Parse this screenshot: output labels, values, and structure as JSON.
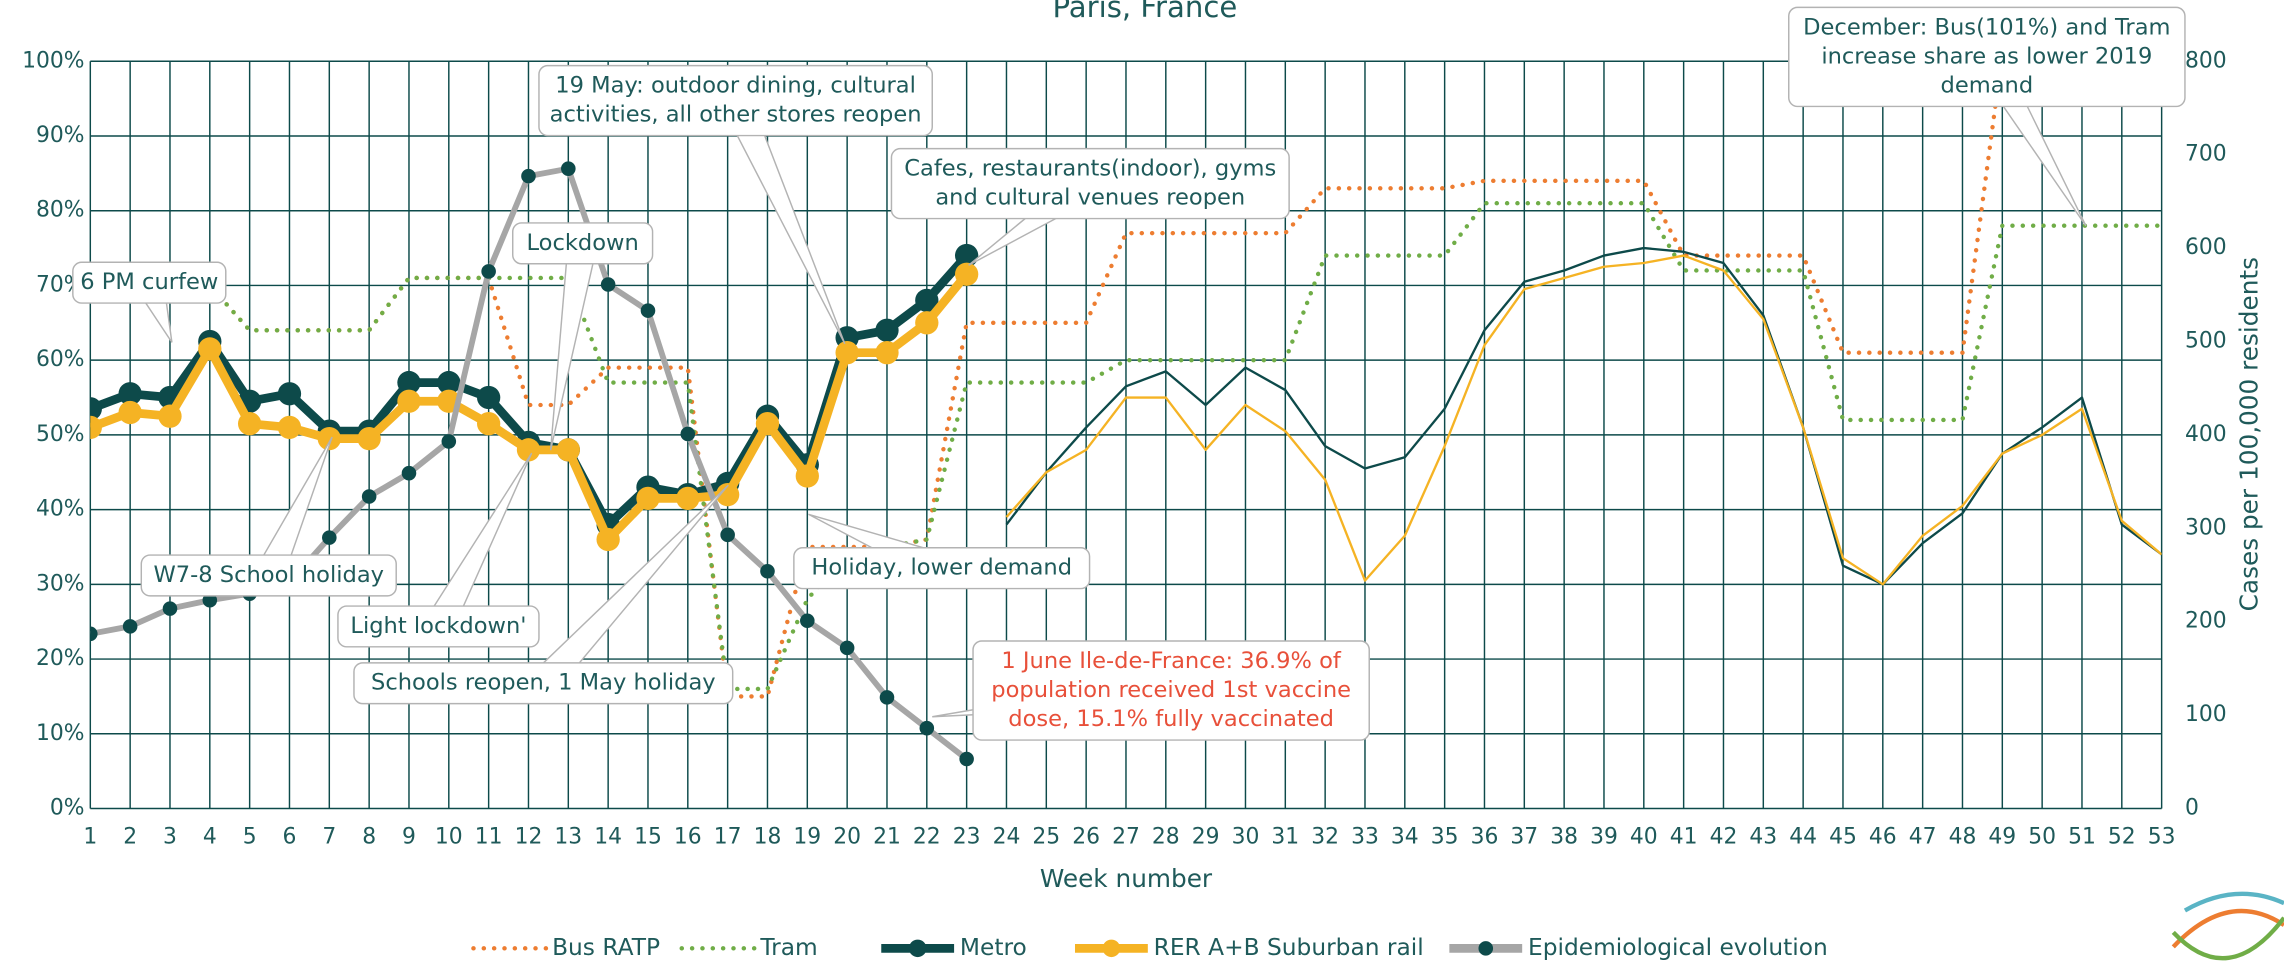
{
  "chart_data": {
    "type": "line",
    "title": "Paris, France",
    "xlabel": "Week number",
    "y2label": "Cases per 100,000 residents",
    "x": [
      1,
      2,
      3,
      4,
      5,
      6,
      7,
      8,
      9,
      10,
      11,
      12,
      13,
      14,
      15,
      16,
      17,
      18,
      19,
      20,
      21,
      22,
      23,
      24,
      25,
      26,
      27,
      28,
      29,
      30,
      31,
      32,
      33,
      34,
      35,
      36,
      37,
      38,
      39,
      40,
      41,
      42,
      43,
      44,
      45,
      46,
      47,
      48,
      49,
      50,
      51,
      52,
      53
    ],
    "xlim": [
      1,
      53
    ],
    "xticks": [
      1,
      2,
      3,
      4,
      5,
      6,
      7,
      8,
      9,
      10,
      11,
      12,
      13,
      14,
      15,
      16,
      17,
      18,
      19,
      20,
      21,
      22,
      23,
      24,
      25,
      26,
      27,
      28,
      29,
      30,
      31,
      32,
      33,
      34,
      35,
      36,
      37,
      38,
      39,
      40,
      41,
      42,
      43,
      44,
      45,
      46,
      47,
      48,
      49,
      50,
      51,
      52,
      53
    ],
    "ylim": [
      0,
      100
    ],
    "yticks": [
      {
        "value": 0,
        "label": "0%"
      },
      {
        "value": 10,
        "label": "10%"
      },
      {
        "value": 20,
        "label": "20%"
      },
      {
        "value": 30,
        "label": "30%"
      },
      {
        "value": 40,
        "label": "40%"
      },
      {
        "value": 50,
        "label": "50%"
      },
      {
        "value": 60,
        "label": "60%"
      },
      {
        "value": 70,
        "label": "70%"
      },
      {
        "value": 80,
        "label": "80%"
      },
      {
        "value": 90,
        "label": "90%"
      },
      {
        "value": 100,
        "label": "100%"
      }
    ],
    "y2lim": [
      0,
      800
    ],
    "y2ticks": [
      0,
      100,
      200,
      300,
      400,
      500,
      600,
      700,
      800
    ],
    "grid": true,
    "legend": "bottom",
    "series": [
      {
        "name": "Bus RATP",
        "color": "#ed7d31",
        "line_style": "dotted",
        "values": [
          70,
          70,
          70,
          70,
          64,
          64,
          64,
          64,
          71,
          71,
          71,
          54,
          54,
          59,
          59,
          59,
          15,
          15,
          35,
          35,
          35,
          36,
          65,
          65,
          65,
          65,
          77,
          77,
          77,
          77,
          77,
          83,
          83,
          83,
          83,
          84,
          84,
          84,
          84,
          84,
          74,
          74,
          74,
          74,
          61,
          61,
          61,
          61,
          101,
          101,
          101,
          101,
          101
        ]
      },
      {
        "name": "Tram",
        "color": "#70ad47",
        "line_style": "dotted",
        "values": [
          70,
          70,
          70,
          70,
          64,
          64,
          64,
          64,
          71,
          71,
          71,
          71,
          71,
          57,
          57,
          57,
          16,
          16,
          28,
          34,
          35,
          36,
          57,
          57,
          57,
          57,
          60,
          60,
          60,
          60,
          60,
          74,
          74,
          74,
          74,
          81,
          81,
          81,
          81,
          81,
          72,
          72,
          72,
          72,
          52,
          52,
          52,
          52,
          78,
          78,
          78,
          78,
          78
        ]
      },
      {
        "name": "Metro",
        "color": "#0d4a4a",
        "line_style": "solid",
        "markers": true,
        "values": [
          53.5,
          55.5,
          55,
          62.5,
          54.5,
          55.5,
          50.5,
          50.5,
          57,
          57,
          55,
          49,
          48,
          38,
          43,
          42,
          43.5,
          52.5,
          46,
          63,
          64,
          68,
          74,
          38,
          45,
          51,
          56.5,
          58.5,
          54,
          59,
          56,
          48.5,
          45.5,
          47,
          53.5,
          64,
          70.5,
          72,
          74,
          75,
          74.5,
          73,
          66,
          51,
          32.5,
          30,
          35.5,
          39.5,
          47.5,
          51,
          55,
          38,
          34
        ]
      },
      {
        "name": "RER A+B Suburban rail",
        "color": "#f5b324",
        "line_style": "solid",
        "markers": true,
        "values": [
          51,
          53,
          52.5,
          61.5,
          51.5,
          51,
          49.5,
          49.5,
          54.5,
          54.5,
          51.5,
          48,
          48,
          36,
          41.5,
          41.5,
          42,
          51.5,
          44.5,
          61,
          61,
          65,
          71.5,
          39,
          45,
          48,
          55,
          55,
          48,
          54,
          50.5,
          44,
          30.5,
          36.5,
          48.5,
          62,
          69.5,
          71,
          72.5,
          73,
          74,
          72,
          65.5,
          51,
          33.5,
          30,
          36.5,
          40.5,
          47.5,
          50,
          53.5,
          38.5,
          34
        ]
      },
      {
        "name": "Epidemiological evolution",
        "color": "#a6a6a6",
        "marker_color": "#0d4a4a",
        "line_style": "solid",
        "markers": true,
        "axis": "y2",
        "values": [
          187,
          195,
          214,
          223,
          230,
          242,
          290,
          334,
          359,
          393,
          575,
          677,
          685,
          561,
          533,
          401,
          293,
          254,
          201,
          172,
          119,
          86,
          53,
          null,
          null,
          null,
          null,
          null,
          null,
          null,
          null,
          null,
          null,
          null,
          null,
          null,
          null,
          null,
          null,
          null,
          null,
          null,
          null,
          null,
          null,
          null,
          null,
          null,
          null,
          null,
          null,
          null,
          null
        ]
      }
    ],
    "annotations": [
      {
        "text": [
          "6 PM curfew"
        ],
        "color": "#1f5a5a"
      },
      {
        "text": [
          "W7-8 School holiday"
        ],
        "color": "#1f5a5a"
      },
      {
        "text": [
          "Lockdown"
        ],
        "color": "#1f5a5a"
      },
      {
        "text": [
          "Light lockdown'"
        ],
        "color": "#1f5a5a"
      },
      {
        "text": [
          "Schools reopen, 1 May holiday"
        ],
        "color": "#1f5a5a"
      },
      {
        "text": [
          "19 May: outdoor dining, cultural",
          "activities, all other stores reopen"
        ],
        "color": "#1f5a5a"
      },
      {
        "text": [
          "Cafes, restaurants(indoor), gyms",
          "and cultural venues reopen"
        ],
        "color": "#1f5a5a"
      },
      {
        "text": [
          "Holiday, lower demand"
        ],
        "color": "#1f5a5a"
      },
      {
        "text": [
          "1 June Ile-de-France: 36.9% of",
          "population received 1st vaccine",
          "dose, 15.1% fully vaccinated"
        ],
        "color": "#e8503a"
      },
      {
        "text": [
          "December: Bus(101%) and Tram",
          "increase share as lower 2019",
          "demand"
        ],
        "color": "#1f5a5a"
      }
    ]
  }
}
